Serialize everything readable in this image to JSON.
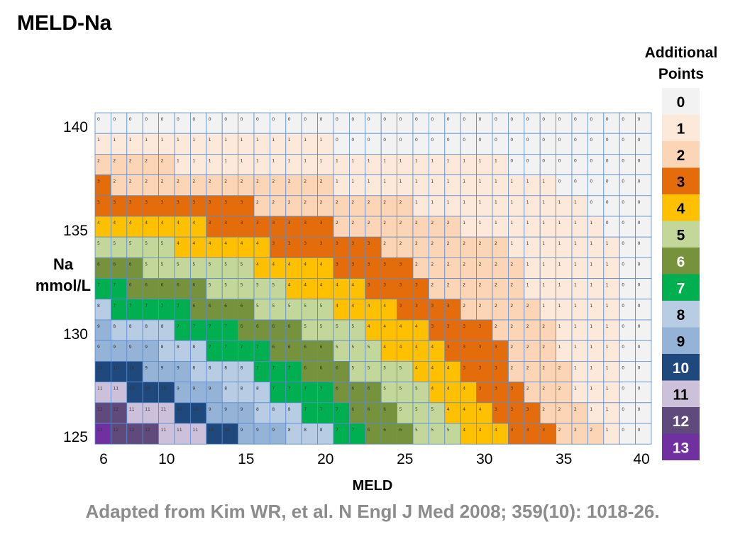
{
  "title": "MELD-Na",
  "credit": "Adapted from Kim WR, et al. N Engl J Med 2008; 359(10): 1018-26.",
  "chart_data": {
    "type": "heatmap",
    "title": "MELD-Na",
    "xlabel": "MELD",
    "ylabel_line1": "Na",
    "ylabel_line2": "mmol/L",
    "legend_title_line1": "Additional",
    "legend_title_line2": "Points",
    "x_range": [
      6,
      40
    ],
    "y_range": [
      125,
      140
    ],
    "x_ticks": [
      6,
      10,
      15,
      20,
      25,
      30,
      35,
      40
    ],
    "y_ticks": [
      140,
      135,
      130,
      125
    ],
    "legend": [
      {
        "value": "0",
        "color": "#f2f2f2",
        "text_color": "#000000"
      },
      {
        "value": "1",
        "color": "#fde9d9",
        "text_color": "#000000"
      },
      {
        "value": "2",
        "color": "#fbd5b5",
        "text_color": "#000000"
      },
      {
        "value": "3",
        "color": "#e46c0a",
        "text_color": "#000000"
      },
      {
        "value": "4",
        "color": "#ffc000",
        "text_color": "#000000"
      },
      {
        "value": "5",
        "color": "#c4d79b",
        "text_color": "#000000"
      },
      {
        "value": "6",
        "color": "#76923c",
        "text_color": "#ffffff"
      },
      {
        "value": "7",
        "color": "#00b050",
        "text_color": "#ffffff"
      },
      {
        "value": "8",
        "color": "#b8cce4",
        "text_color": "#000000"
      },
      {
        "value": "9",
        "color": "#95b3d7",
        "text_color": "#000000"
      },
      {
        "value": "10",
        "color": "#1f497d",
        "text_color": "#ffffff"
      },
      {
        "value": "11",
        "color": "#ccc0da",
        "text_color": "#000000"
      },
      {
        "value": "12",
        "color": "#604a7b",
        "text_color": "#ffffff"
      },
      {
        "value": "13",
        "color": "#7030a0",
        "text_color": "#ffffff"
      }
    ],
    "rows": [
      {
        "na": 140,
        "values": [
          0,
          0,
          0,
          0,
          0,
          0,
          0,
          0,
          0,
          0,
          0,
          0,
          0,
          0,
          0,
          0,
          0,
          0,
          0,
          0,
          0,
          0,
          0,
          0,
          0,
          0,
          0,
          0,
          0,
          0,
          0,
          0,
          0,
          0,
          0
        ]
      },
      {
        "na": 139,
        "values": [
          1,
          1,
          1,
          1,
          1,
          1,
          1,
          1,
          1,
          1,
          1,
          1,
          1,
          1,
          1,
          0,
          0,
          0,
          0,
          0,
          0,
          0,
          0,
          0,
          0,
          0,
          0,
          0,
          0,
          0,
          0,
          0,
          0,
          0,
          0
        ]
      },
      {
        "na": 138,
        "values": [
          2,
          2,
          2,
          2,
          2,
          1,
          1,
          1,
          1,
          1,
          1,
          1,
          1,
          1,
          1,
          1,
          1,
          1,
          1,
          1,
          1,
          1,
          1,
          1,
          1,
          1,
          0,
          0,
          0,
          0,
          0,
          0,
          0,
          0,
          0
        ]
      },
      {
        "na": 137,
        "values": [
          3,
          2,
          2,
          2,
          2,
          2,
          2,
          2,
          2,
          2,
          2,
          2,
          2,
          2,
          2,
          1,
          1,
          1,
          1,
          1,
          1,
          1,
          1,
          1,
          1,
          1,
          1,
          1,
          1,
          0,
          0,
          0,
          0,
          0,
          0
        ]
      },
      {
        "na": 136,
        "values": [
          3,
          3,
          3,
          3,
          3,
          3,
          3,
          3,
          3,
          3,
          2,
          2,
          2,
          2,
          2,
          2,
          2,
          2,
          2,
          2,
          1,
          1,
          1,
          1,
          1,
          1,
          1,
          1,
          1,
          1,
          1,
          0,
          0,
          0,
          0
        ]
      },
      {
        "na": 135,
        "values": [
          4,
          4,
          4,
          4,
          4,
          4,
          4,
          3,
          3,
          3,
          3,
          3,
          3,
          3,
          3,
          2,
          2,
          2,
          2,
          2,
          2,
          2,
          2,
          1,
          1,
          1,
          1,
          1,
          1,
          1,
          1,
          1,
          0,
          0,
          0
        ]
      },
      {
        "na": 134,
        "values": [
          5,
          5,
          5,
          5,
          5,
          4,
          4,
          4,
          4,
          4,
          4,
          3,
          3,
          3,
          3,
          3,
          3,
          3,
          2,
          2,
          2,
          2,
          2,
          2,
          2,
          2,
          1,
          1,
          1,
          1,
          1,
          1,
          1,
          0,
          0
        ]
      },
      {
        "na": 133,
        "values": [
          6,
          6,
          6,
          5,
          5,
          5,
          5,
          5,
          5,
          5,
          4,
          4,
          4,
          4,
          4,
          3,
          3,
          3,
          3,
          3,
          2,
          2,
          2,
          2,
          2,
          2,
          2,
          1,
          1,
          1,
          1,
          1,
          1,
          0,
          0
        ]
      },
      {
        "na": 132,
        "values": [
          7,
          7,
          6,
          6,
          6,
          6,
          6,
          5,
          5,
          5,
          5,
          5,
          4,
          4,
          4,
          4,
          4,
          3,
          3,
          3,
          3,
          2,
          2,
          2,
          2,
          2,
          2,
          1,
          1,
          1,
          1,
          1,
          1,
          0,
          0
        ]
      },
      {
        "na": 131,
        "values": [
          8,
          7,
          7,
          7,
          7,
          7,
          6,
          6,
          6,
          6,
          5,
          5,
          5,
          5,
          5,
          4,
          4,
          4,
          4,
          3,
          3,
          3,
          3,
          2,
          2,
          2,
          2,
          2,
          1,
          1,
          1,
          1,
          1,
          0,
          0
        ]
      },
      {
        "na": 130,
        "values": [
          9,
          8,
          8,
          8,
          8,
          7,
          7,
          7,
          7,
          6,
          6,
          6,
          6,
          5,
          5,
          5,
          5,
          4,
          4,
          4,
          4,
          3,
          3,
          3,
          3,
          2,
          2,
          2,
          2,
          1,
          1,
          1,
          1,
          0,
          0
        ]
      },
      {
        "na": 129,
        "values": [
          9,
          9,
          9,
          9,
          8,
          8,
          8,
          7,
          7,
          7,
          7,
          6,
          6,
          6,
          6,
          5,
          5,
          5,
          4,
          4,
          4,
          4,
          3,
          3,
          3,
          3,
          2,
          2,
          2,
          1,
          1,
          1,
          1,
          0,
          0
        ]
      },
      {
        "na": 128,
        "values": [
          10,
          10,
          10,
          9,
          9,
          9,
          8,
          8,
          8,
          8,
          7,
          7,
          7,
          6,
          6,
          6,
          5,
          5,
          5,
          5,
          4,
          4,
          4,
          3,
          3,
          3,
          2,
          2,
          2,
          2,
          1,
          1,
          1,
          0,
          0
        ]
      },
      {
        "na": 127,
        "values": [
          11,
          11,
          10,
          10,
          10,
          9,
          9,
          9,
          8,
          8,
          8,
          7,
          7,
          7,
          7,
          6,
          6,
          6,
          5,
          5,
          5,
          4,
          4,
          4,
          3,
          3,
          3,
          2,
          2,
          2,
          1,
          1,
          1,
          0,
          0
        ]
      },
      {
        "na": 126,
        "values": [
          12,
          12,
          11,
          11,
          11,
          10,
          10,
          9,
          9,
          9,
          8,
          8,
          8,
          7,
          7,
          7,
          6,
          6,
          6,
          5,
          5,
          5,
          4,
          4,
          4,
          3,
          3,
          3,
          2,
          2,
          2,
          1,
          1,
          0,
          0
        ]
      },
      {
        "na": 125,
        "values": [
          13,
          12,
          12,
          12,
          11,
          11,
          11,
          10,
          10,
          9,
          9,
          9,
          8,
          8,
          8,
          7,
          7,
          6,
          6,
          6,
          5,
          5,
          5,
          4,
          4,
          4,
          3,
          3,
          3,
          2,
          2,
          2,
          1,
          0,
          0
        ]
      }
    ]
  }
}
